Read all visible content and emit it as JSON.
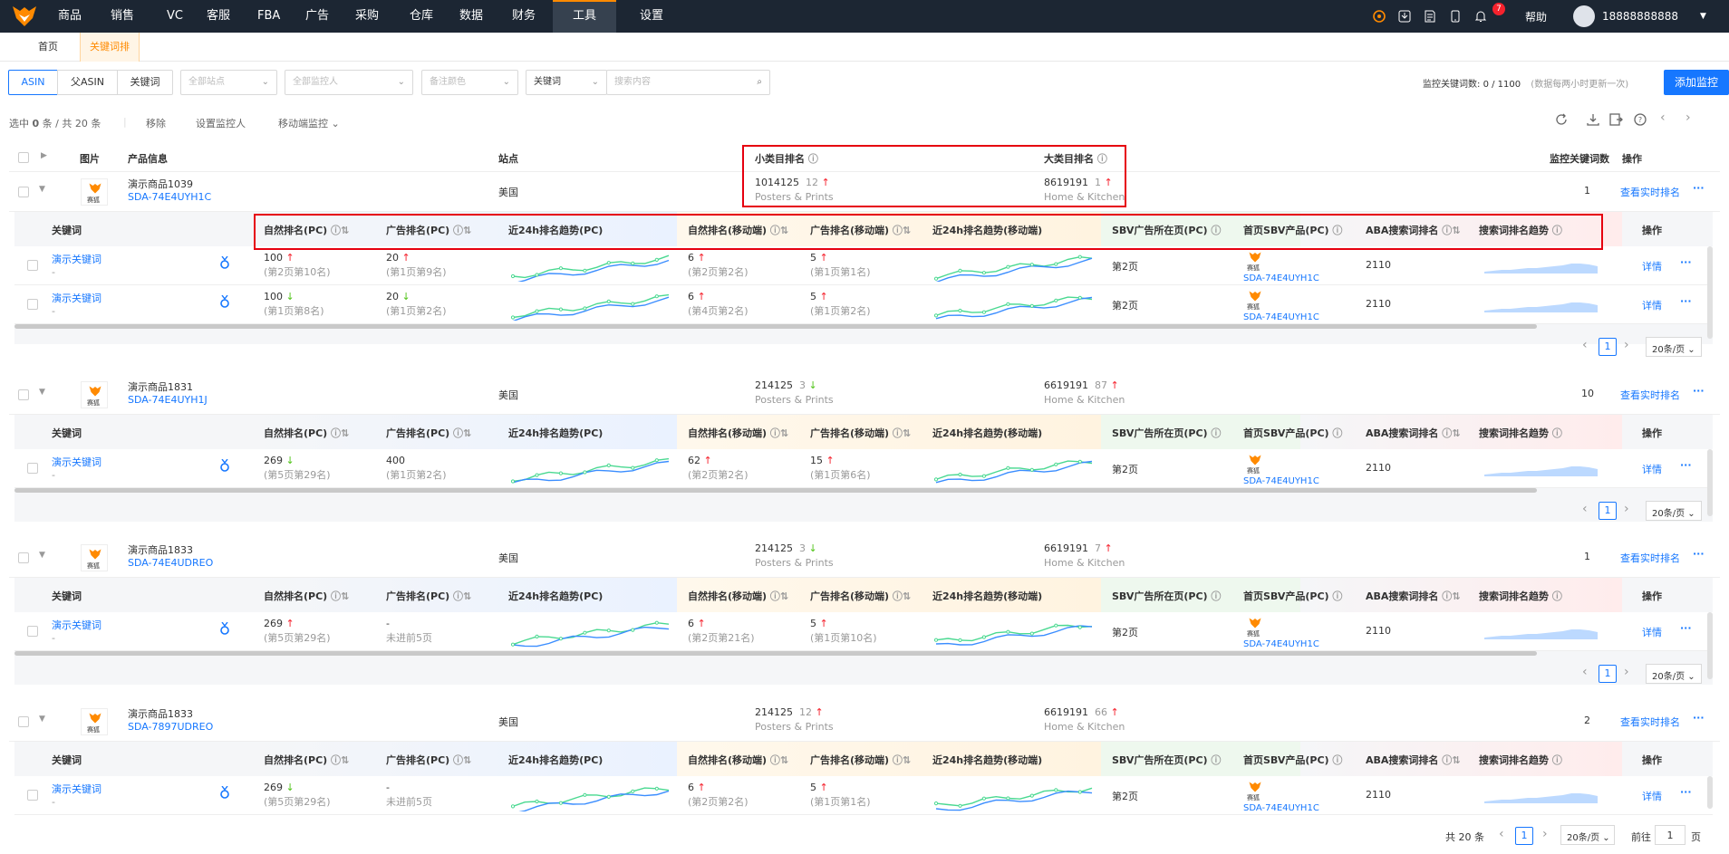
{
  "nav": {
    "items": [
      "商品",
      "销售",
      "VC",
      "客服",
      "FBA",
      "广告",
      "采购",
      "仓库",
      "数据",
      "财务",
      "工具",
      "设置"
    ],
    "active": "工具",
    "help": "帮助",
    "user": "18888888888",
    "notif_count": "7"
  },
  "tabs": {
    "home": "首页",
    "current": "关键词排名",
    "close": "×"
  },
  "filters": {
    "seg": [
      "ASIN",
      "父ASIN",
      "关键词"
    ],
    "site": "全部站点",
    "monitor": "全部监控人",
    "color": "备注颜色",
    "kw_type": "关键词",
    "search_placeholder": "搜索内容",
    "quota_label": "监控关键词数:",
    "quota": "0 / 1100",
    "quota_note": "(数据每两小时更新一次)",
    "add_btn": "添加监控"
  },
  "toolbar": {
    "selected_pre": "选中",
    "selected": "0",
    "selected_mid": "条 / 共",
    "total": "20",
    "selected_post": "条",
    "remove": "移除",
    "set_monitor": "设置监控人",
    "move": "移动端监控"
  },
  "head": {
    "img": "图片",
    "info": "产品信息",
    "site": "站点",
    "small_rank": "小类目排名",
    "big_rank": "大类目排名",
    "kw_count": "监控关键词数",
    "op": "操作"
  },
  "sub_head": {
    "kw": "关键词",
    "nat_pc": "自然排名(PC)",
    "ad_pc": "广告排名(PC)",
    "trend_pc": "近24h排名趋势(PC)",
    "nat_m": "自然排名(移动端)",
    "ad_m": "广告排名(移动端)",
    "trend_m": "近24h排名趋势(移动端)",
    "sbv_page": "SBV广告所在页(PC)",
    "sbv_prod": "首页SBV产品(PC)",
    "aba": "ABA搜索词排名",
    "kw_trend": "搜索词排名趋势",
    "op": "操作"
  },
  "common": {
    "site": "美国",
    "view_rank": "查看实时排名",
    "more": "···",
    "detail": "详情",
    "cat_small": "Posters & Prints",
    "cat_big": "Home & Kitchen",
    "kw_name": "演示关键词",
    "dash": "-",
    "sbv_page": "第2页",
    "aba": "2110",
    "logo_text": "赛狐",
    "page_size": "20条/页",
    "page": "1"
  },
  "products": [
    {
      "name": "演示商品1039",
      "sku": "SDA-74E4UYH1C",
      "small": "1014125",
      "small_d": "12",
      "small_dir": "up",
      "big": "8619191",
      "big_d": "1",
      "big_dir": "up",
      "kw_count": "1",
      "kws": [
        {
          "np": "100",
          "npd": "up",
          "np2": "(第2页第10名)",
          "ap": "20",
          "apd": "up",
          "ap2": "(第1页第9名)",
          "nm": "6",
          "nmd": "up",
          "nm2": "(第2页第2名)",
          "am": "5",
          "amd": "up",
          "am2": "(第1页第1名)",
          "sbv": "SDA-74E4UYH1C"
        },
        {
          "np": "100",
          "npd": "down",
          "np2": "(第1页第8名)",
          "ap": "20",
          "apd": "down",
          "ap2": "(第1页第2名)",
          "nm": "6",
          "nmd": "up",
          "nm2": "(第4页第2名)",
          "am": "5",
          "amd": "up",
          "am2": "(第1页第2名)",
          "sbv": "SDA-74E4UYH1C"
        }
      ]
    },
    {
      "name": "演示商品1831",
      "sku": "SDA-74E4UYH1J",
      "small": "214125",
      "small_d": "3",
      "small_dir": "down",
      "big": "6619191",
      "big_d": "87",
      "big_dir": "up",
      "kw_count": "10",
      "kws": [
        {
          "np": "269",
          "npd": "down",
          "np2": "(第5页第29名)",
          "ap": "400",
          "apd": "",
          "ap2": "(第1页第2名)",
          "nm": "62",
          "nmd": "up",
          "nm2": "(第2页第2名)",
          "am": "15",
          "amd": "up",
          "am2": "(第1页第6名)",
          "sbv": "SDA-74E4UYH1C"
        }
      ]
    },
    {
      "name": "演示商品1833",
      "sku": "SDA-74E4UDREO",
      "small": "214125",
      "small_d": "3",
      "small_dir": "down",
      "big": "6619191",
      "big_d": "7",
      "big_dir": "up",
      "kw_count": "1",
      "kws": [
        {
          "np": "269",
          "npd": "up",
          "np2": "(第5页第29名)",
          "ap": "-",
          "apd": "",
          "ap2": "未进前5页",
          "nm": "6",
          "nmd": "up",
          "nm2": "(第2页第21名)",
          "am": "5",
          "amd": "up",
          "am2": "(第1页第10名)",
          "sbv": "SDA-74E4UYH1C"
        }
      ]
    },
    {
      "name": "演示商品1833",
      "sku": "SDA-7897UDREO",
      "small": "214125",
      "small_d": "12",
      "small_dir": "up",
      "big": "6619191",
      "big_d": "66",
      "big_dir": "up",
      "kw_count": "2",
      "kws": [
        {
          "np": "269",
          "npd": "down",
          "np2": "(第5页第29名)",
          "ap": "-",
          "apd": "",
          "ap2": "未进前5页",
          "nm": "6",
          "nmd": "up",
          "nm2": "(第2页第2名)",
          "am": "5",
          "amd": "up",
          "am2": "(第1页第1名)",
          "sbv": "SDA-74E4UYH1C"
        }
      ]
    }
  ],
  "footer": {
    "total_pre": "共",
    "total": "20",
    "total_post": "条",
    "page": "1",
    "page_size": "20条/页",
    "goto": "前往",
    "goto_val": "1",
    "goto_post": "页"
  },
  "colors": {
    "accent": "#1677ff",
    "up": "#f5222d",
    "down": "#52c41a",
    "nav_bg": "#1c2633",
    "brand": "#ff8a00"
  }
}
